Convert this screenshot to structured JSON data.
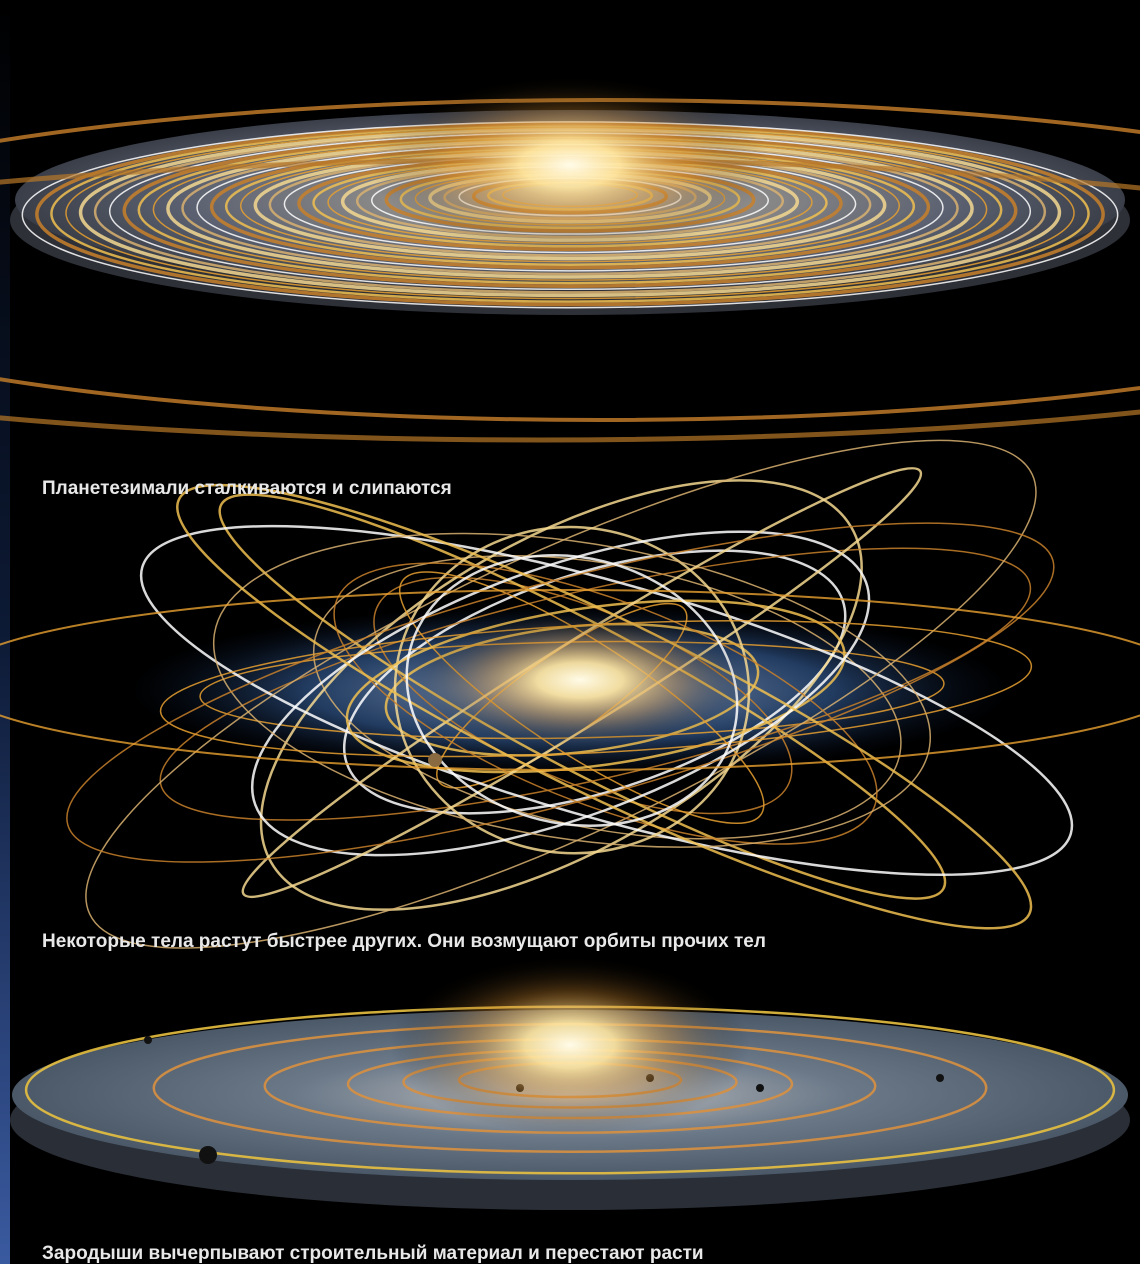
{
  "captions": [
    "Планетезимали сталкиваются и слипаются",
    "Некоторые тела растут быстрее других. Они возмущают орбиты прочих тел",
    "Зародыши вычерпывают строительный материал и перестают расти"
  ]
}
